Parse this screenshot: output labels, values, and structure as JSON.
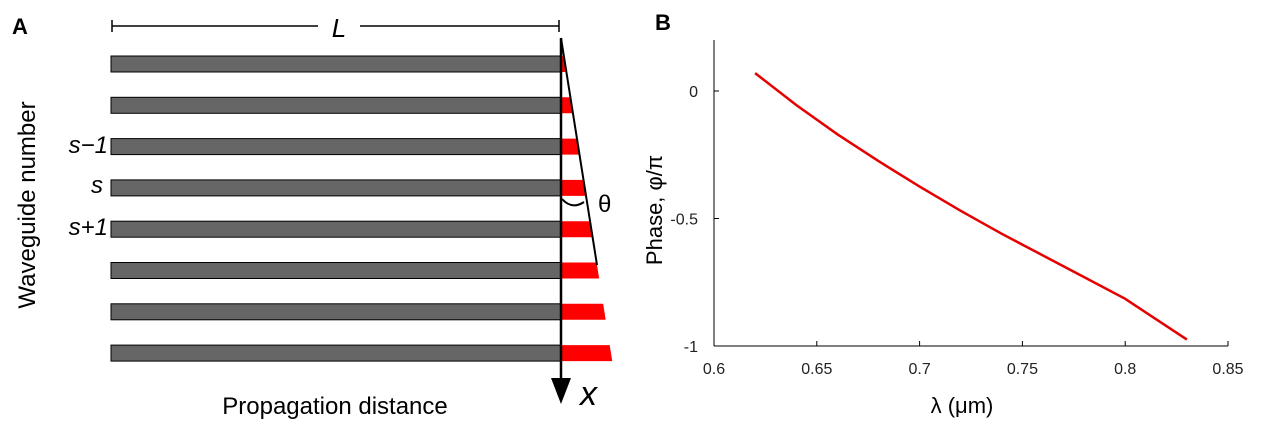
{
  "panel_a": {
    "letter": "A",
    "length_label": "L",
    "ylabel": "Waveguide number",
    "xlabel": "Propagation distance",
    "row_labels": [
      "s−1",
      "s",
      "s+1"
    ],
    "angle_label": "θ",
    "axis_label": "x",
    "waveguide_count": 8,
    "colors": {
      "waveguide": "#666666",
      "phase": "#ff0000",
      "line": "#000000"
    }
  },
  "panel_b": {
    "letter": "B"
  },
  "chart_data": {
    "type": "line",
    "title": "",
    "xlabel": "λ (μm)",
    "ylabel": "Phase, φ/π",
    "xlim": [
      0.6,
      0.85
    ],
    "ylim": [
      -1,
      0.2
    ],
    "xticks": [
      0.6,
      0.65,
      0.7,
      0.75,
      0.8,
      0.85
    ],
    "xtick_labels": [
      "0.6",
      "0.65",
      "0.7",
      "0.75",
      "0.8",
      "0.85"
    ],
    "yticks": [
      0,
      -0.5,
      -1
    ],
    "ytick_labels": [
      "0",
      "-0.5",
      "-1"
    ],
    "grid": false,
    "series": [
      {
        "color": "#e60000",
        "x": [
          0.62,
          0.64,
          0.66,
          0.68,
          0.7,
          0.72,
          0.74,
          0.76,
          0.78,
          0.8,
          0.83
        ],
        "y": [
          0.07,
          -0.055,
          -0.17,
          -0.275,
          -0.375,
          -0.47,
          -0.56,
          -0.645,
          -0.73,
          -0.815,
          -0.975
        ]
      }
    ]
  }
}
